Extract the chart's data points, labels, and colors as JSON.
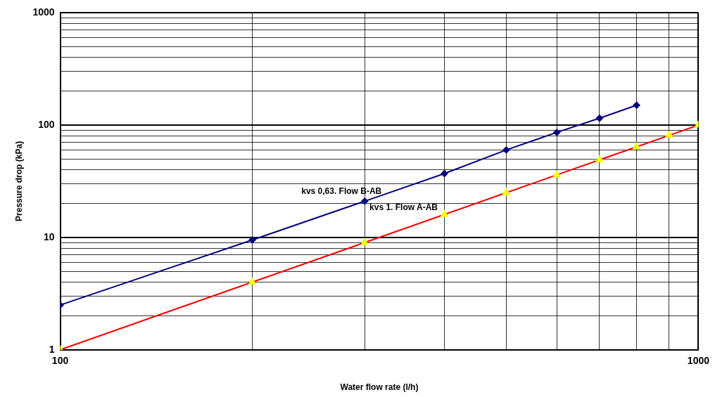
{
  "chart_data": {
    "type": "line",
    "xlabel": "Water flow rate (l/h)",
    "ylabel": "Pressure drop (kPa)",
    "log": "xy",
    "grid": true,
    "legend": false,
    "series": [
      {
        "name": "kvs 0,63. Flow B-AB",
        "color": "#000080",
        "marker": "diamond",
        "x": [
          100,
          200,
          300,
          400,
          500,
          600,
          700,
          800
        ],
        "values": [
          2.5,
          9.5,
          21,
          37,
          60,
          86,
          115,
          150
        ]
      },
      {
        "name": "kvs 1. Flow A-AB",
        "color": "#ff0000",
        "marker": "triangle",
        "x": [
          100,
          200,
          300,
          400,
          500,
          600,
          700,
          800,
          900,
          1000
        ],
        "values": [
          1,
          4,
          9,
          16,
          25,
          36,
          49,
          64,
          81,
          100
        ]
      }
    ],
    "xlim": [
      100,
      1000
    ],
    "ylim": [
      1,
      1000
    ],
    "xticks": [
      100,
      {
        "value": 200,
        "label": null
      },
      {
        "value": 300,
        "label": null
      },
      {
        "value": 400,
        "label": null
      },
      {
        "value": 500,
        "label": null
      },
      {
        "value": 600,
        "label": null
      },
      {
        "value": 700,
        "label": null
      },
      {
        "value": 800,
        "label": null
      },
      {
        "value": 900,
        "label": null
      },
      1000
    ],
    "yticks": [
      1,
      {
        "value": 2,
        "label": null
      },
      {
        "value": 3,
        "label": null
      },
      {
        "value": 4,
        "label": null
      },
      {
        "value": 5,
        "label": null
      },
      {
        "value": 6,
        "label": null
      },
      {
        "value": 7,
        "label": null
      },
      {
        "value": 8,
        "label": null
      },
      {
        "value": 9,
        "label": null
      },
      10,
      {
        "value": 20,
        "label": null
      },
      {
        "value": 30,
        "label": null
      },
      {
        "value": 40,
        "label": null
      },
      {
        "value": 50,
        "label": null
      },
      {
        "value": 60,
        "label": null
      },
      {
        "value": 70,
        "label": null
      },
      {
        "value": 80,
        "label": null
      },
      {
        "value": 90,
        "label": null
      },
      100,
      {
        "value": 200,
        "label": null
      },
      {
        "value": 300,
        "label": null
      },
      {
        "value": 400,
        "label": null
      },
      {
        "value": 500,
        "label": null
      },
      {
        "value": 600,
        "label": null
      },
      {
        "value": 700,
        "label": null
      },
      {
        "value": 800,
        "label": null
      },
      {
        "value": 900,
        "label": null
      },
      1000
    ]
  }
}
